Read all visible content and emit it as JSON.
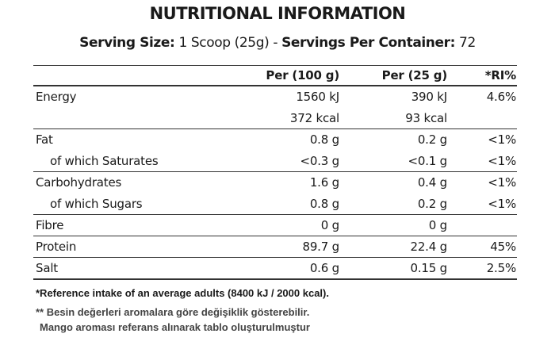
{
  "header": {
    "title": "NUTRITIONAL INFORMATION",
    "serving": [
      "Serving Size:",
      " 1 Scoop (25g) - ",
      "Servings Per Container:",
      " 72"
    ]
  },
  "table": {
    "columns": [
      "Per (100 g)",
      "Per (25 g)",
      "*RI%"
    ],
    "rows": [
      [
        "Energy",
        "1560 kJ",
        "390 kJ",
        "4.6%"
      ],
      [
        null,
        "372 kcal",
        "93 kcal",
        null
      ],
      [
        "Fat",
        "0.8 g",
        "0.2 g",
        "<1%"
      ],
      [
        "of which Saturates",
        "<0.3 g",
        "<0.1 g",
        "<1%"
      ],
      [
        "Carbohydrates",
        "1.6 g",
        "0.4 g",
        "<1%"
      ],
      [
        "of which Sugars",
        "0.8 g",
        "0.2 g",
        "<1%"
      ],
      [
        "Fibre",
        "0 g",
        "0 g",
        null
      ],
      [
        "Protein",
        "89.7 g",
        "22.4 g",
        "45%"
      ],
      [
        "Salt",
        "0.6 g",
        "0.15 g",
        "2.5%"
      ]
    ]
  },
  "footnotes": [
    "*Reference intake of an average adults (8400 kJ / 2000 kcal).",
    "** Besin değerleri aromalara göre değişiklik gösterebilir.",
    "Mango aroması referans alınarak tablo oluşturulmuştur"
  ]
}
